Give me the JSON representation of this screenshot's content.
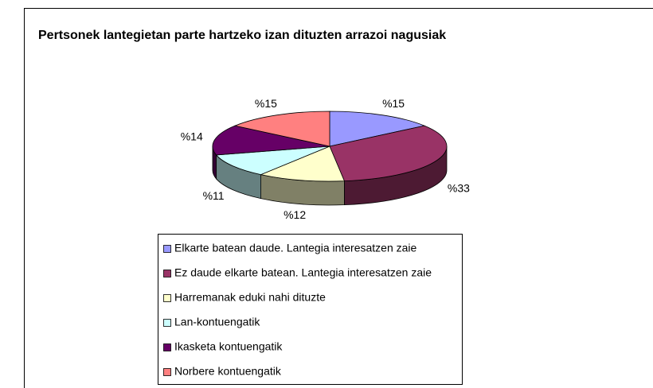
{
  "chart_data": {
    "type": "pie",
    "title": "Pertsonek lantegietan parte hartzeko izan dituzten arrazoi nagusiak",
    "categories": [
      "Elkarte batean daude. Lantegia interesatzen zaie",
      "Ez daude elkarte batean. Lantegia interesatzen zaie",
      "Harremanak eduki nahi dituzte",
      "Lan-kontuengatik",
      "Ikasketa kontuengatik",
      "Norbere kontuengatik"
    ],
    "values": [
      15,
      33,
      12,
      11,
      14,
      15
    ],
    "value_labels": [
      "%15",
      "%33",
      "%12",
      "%11",
      "%14",
      "%15"
    ],
    "colors": [
      "#9999ff",
      "#993366",
      "#ffffcc",
      "#ccffff",
      "#660066",
      "#ff8080"
    ],
    "legend": "bottom"
  }
}
